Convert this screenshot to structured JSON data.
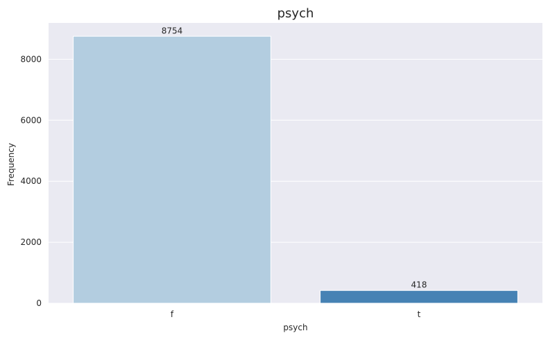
{
  "chart_data": {
    "type": "bar",
    "title": "psych",
    "xlabel": "psych",
    "ylabel": "Frequency",
    "categories": [
      "f",
      "t"
    ],
    "values": [
      8754,
      418
    ],
    "data_labels": [
      "8754",
      "418"
    ],
    "colors": [
      "#b3cde0",
      "#4682b4"
    ],
    "yticks": [
      0,
      2000,
      4000,
      6000,
      8000
    ],
    "ytick_labels": [
      "0",
      "2000",
      "4000",
      "6000",
      "8000"
    ],
    "ylim": [
      0,
      9192
    ],
    "grid": true,
    "background": "#eaeaf2"
  }
}
